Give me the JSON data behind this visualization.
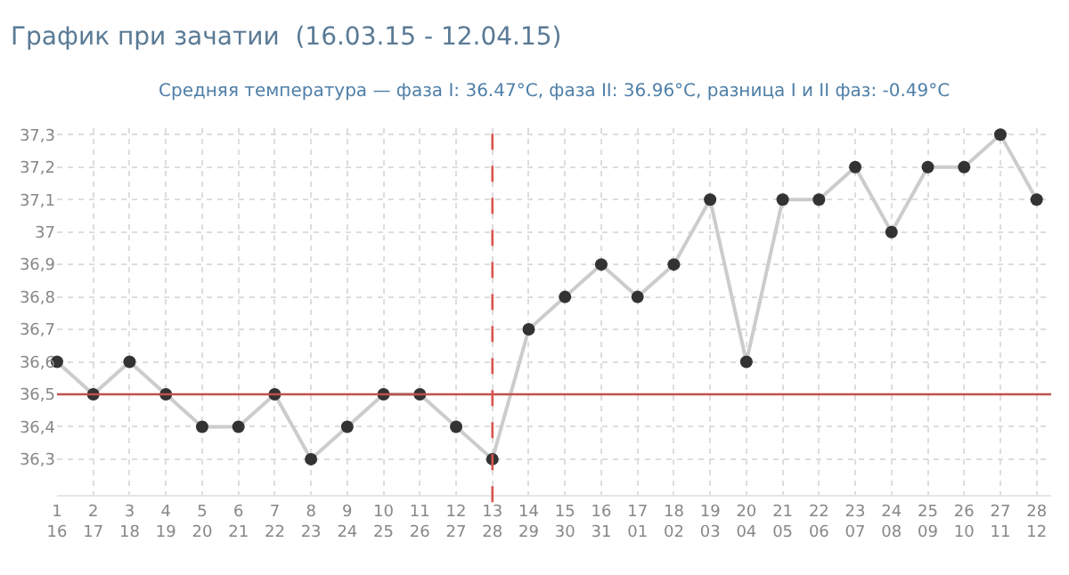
{
  "chart_data": {
    "type": "line",
    "title": "График при зачатии  (16.03.15 - 12.04.15)",
    "subtitle": "Средняя температура — фаза I: 36.47°C, фаза II: 36.96°C, разница I и II фаз: -0.49°C",
    "categories": [
      "1\n16",
      "2\n17",
      "3\n18",
      "4\n19",
      "5\n20",
      "6\n21",
      "7\n22",
      "8\n23",
      "9\n24",
      "10\n25",
      "11\n26",
      "12\n27",
      "13\n28",
      "14\n29",
      "15\n30",
      "16\n31",
      "17\n01",
      "18\n02",
      "19\n03",
      "20\n04",
      "21\n05",
      "22\n06",
      "23\n07",
      "24\n08",
      "25\n09",
      "26\n10",
      "27\n11",
      "28\n12"
    ],
    "series": [
      {
        "color": "#333333",
        "values": [
          36.6,
          36.5,
          36.6,
          36.5,
          36.4,
          36.4,
          36.5,
          36.3,
          36.4,
          36.5,
          36.5,
          36.4,
          36.3,
          36.7,
          36.8,
          36.9,
          36.8,
          36.9,
          37.1,
          36.6,
          37.1,
          37.1,
          37.2,
          37.0,
          37.2,
          37.2,
          37.3,
          37.1
        ]
      }
    ],
    "ylim": [
      36.19,
      37.32
    ],
    "yticks": [
      {
        "value": 36.3,
        "label": "36,3"
      },
      {
        "value": 36.4,
        "label": "36,4"
      },
      {
        "value": 36.5,
        "label": "36,5"
      },
      {
        "value": 36.6,
        "label": "36,6"
      },
      {
        "value": 36.7,
        "label": "36,7"
      },
      {
        "value": 36.8,
        "label": "36,8"
      },
      {
        "value": 36.9,
        "label": "36,9"
      },
      37,
      {
        "value": 37.1,
        "label": "37,1"
      },
      {
        "value": 37.2,
        "label": "37,2"
      },
      {
        "value": 37.3,
        "label": "37,3"
      }
    ],
    "ref_lines": [
      {
        "axis": "y",
        "value": 36.5,
        "color": "#c0504d",
        "line_style": "solid"
      },
      {
        "axis": "x",
        "value": "13\n28",
        "color": "#d9534f",
        "line_style": "dashed"
      }
    ],
    "grid": true,
    "marker": "circle",
    "line_style": "solid"
  }
}
